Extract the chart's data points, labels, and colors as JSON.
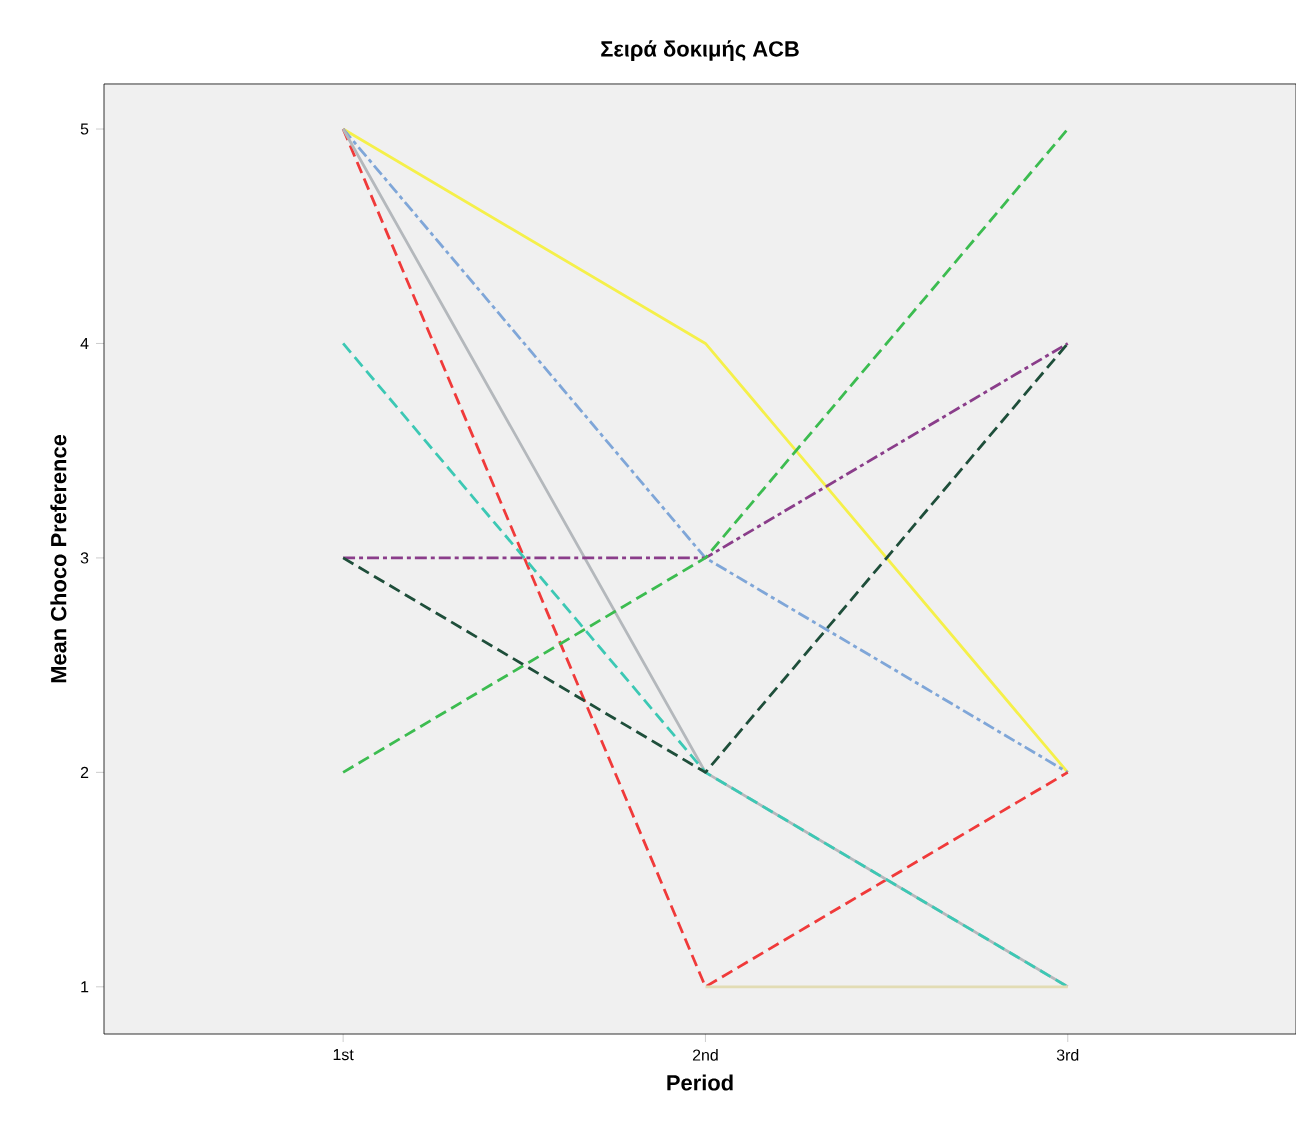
{
  "chart_data": {
    "type": "line",
    "title": "Σειρά δοκιμής ACB",
    "xlabel": "Period",
    "ylabel": "Mean Choco Preference",
    "categories": [
      "1st",
      "2nd",
      "3rd"
    ],
    "ylim": [
      0.78,
      5.21
    ],
    "yticks": [
      1,
      2,
      3,
      4,
      5
    ],
    "grid": false,
    "series": [
      {
        "color": "#f5f04a",
        "values": [
          5,
          4,
          2
        ],
        "line_style": "solid"
      },
      {
        "color": "#7fa6d8",
        "values": [
          5,
          3,
          2
        ],
        "line_style": "dashdot"
      },
      {
        "color": "#f03a3a",
        "values": [
          5,
          1,
          2
        ],
        "line_style": "dashed"
      },
      {
        "color": "#b4b8bc",
        "values": [
          5,
          2,
          1
        ],
        "line_style": "solid"
      },
      {
        "color": "#3cc8b4",
        "values": [
          4,
          2,
          1
        ],
        "line_style": "dashed"
      },
      {
        "color": "#8a3d8a",
        "values": [
          3,
          3,
          4
        ],
        "line_style": "dashdot"
      },
      {
        "color": "#1e4e3a",
        "values": [
          3,
          2,
          4
        ],
        "line_style": "dashed"
      },
      {
        "color": "#3cbc50",
        "values": [
          2,
          3,
          5
        ],
        "line_style": "dashed"
      },
      {
        "color": "#e2dcb4",
        "values": [
          null,
          1,
          1
        ],
        "line_style": "solid"
      }
    ]
  }
}
